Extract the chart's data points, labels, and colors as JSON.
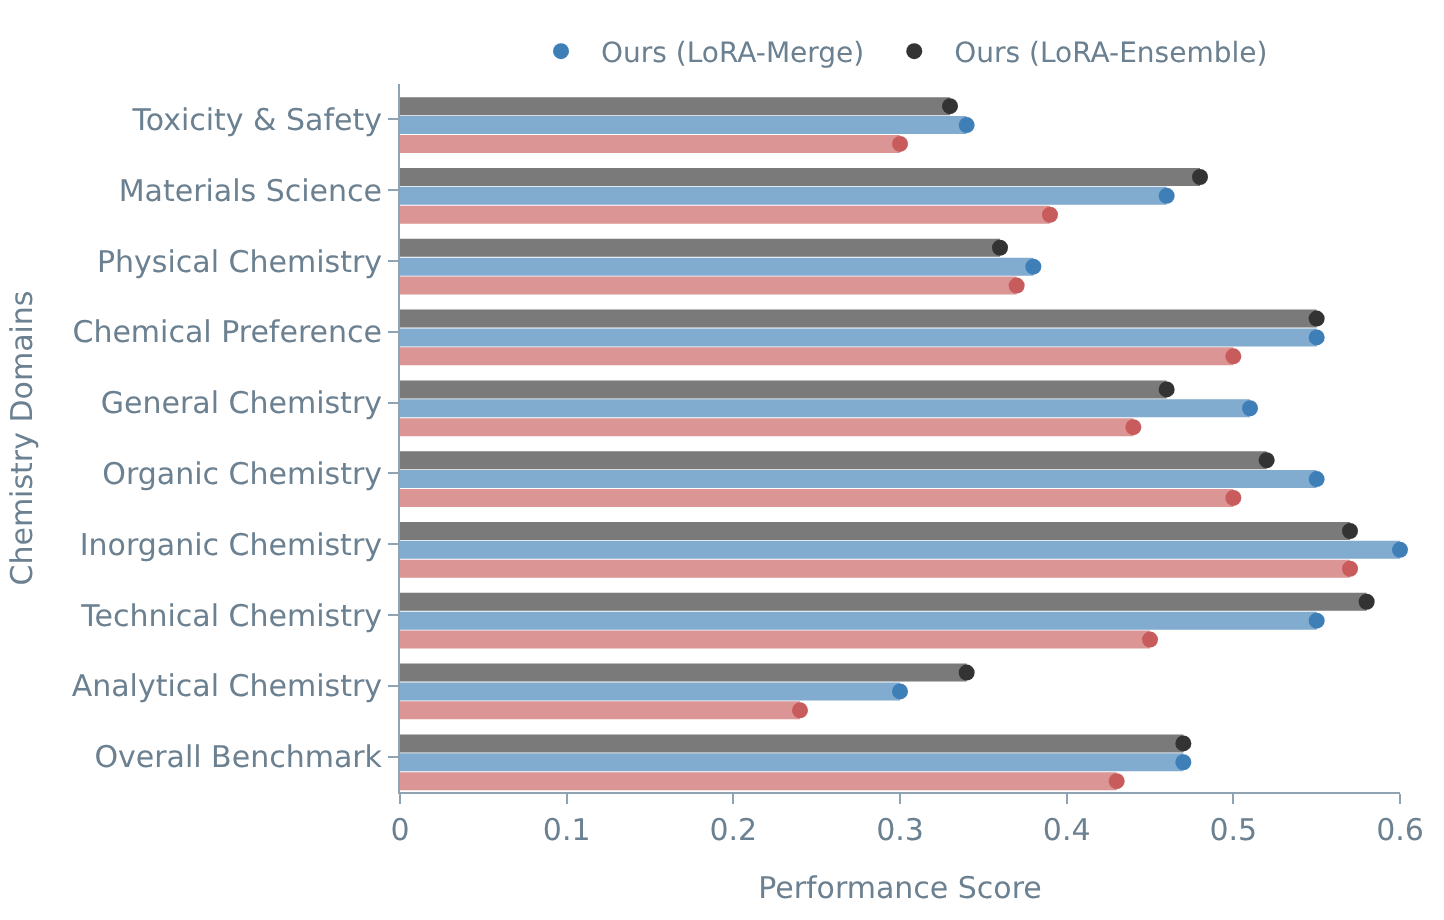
{
  "chart_data": {
    "type": "lollipop",
    "orientation": "horizontal",
    "xlabel": "Performance Score",
    "ylabel": "Chemistry Domains",
    "categories": [
      "Toxicity & Safety",
      "Materials Science",
      "Physical Chemistry",
      "Chemical Preference",
      "General Chemistry",
      "Organic Chemistry",
      "Inorganic Chemistry",
      "Technical Chemistry",
      "Analytical Chemistry",
      "Overall Benchmark"
    ],
    "series": [
      {
        "color": "#c85c5c",
        "values": [
          0.3,
          0.39,
          0.37,
          0.5,
          0.44,
          0.5,
          0.57,
          0.45,
          0.24,
          0.43
        ]
      },
      {
        "name": "Ours (LoRA-Merge)",
        "color": "#3f7fb8",
        "values": [
          0.34,
          0.46,
          0.38,
          0.55,
          0.51,
          0.55,
          0.6,
          0.55,
          0.3,
          0.47
        ]
      },
      {
        "name": "Ours (LoRA-Ensemble)",
        "color": "#333333",
        "values": [
          0.33,
          0.48,
          0.36,
          0.55,
          0.46,
          0.52,
          0.57,
          0.58,
          0.34,
          0.47
        ]
      }
    ],
    "xlim": [
      0,
      0.6
    ],
    "xticks": [
      0,
      0.1,
      0.2,
      0.3,
      0.4,
      0.5,
      0.6
    ],
    "marker": "circle",
    "legend": "top"
  }
}
